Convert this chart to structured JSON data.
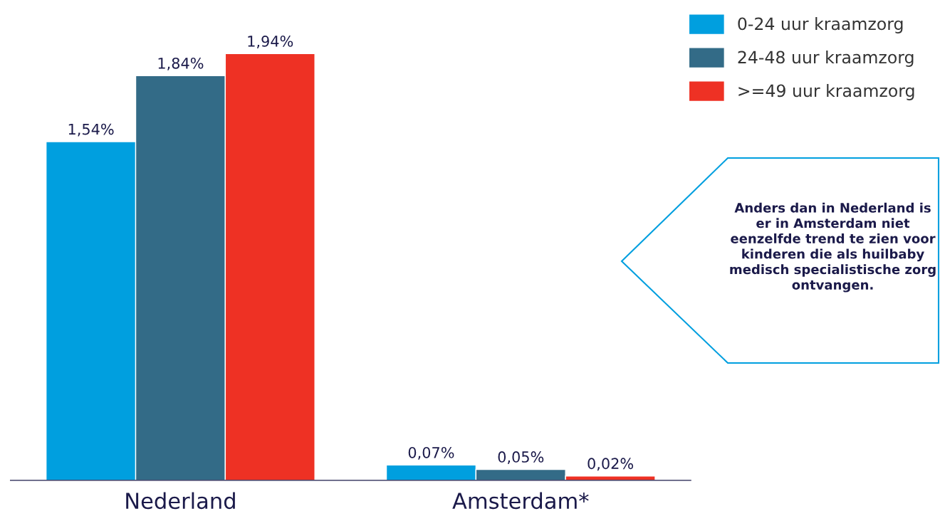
{
  "chart_data": {
    "type": "bar",
    "categories": [
      "Nederland",
      "Amsterdam*"
    ],
    "series": [
      {
        "name": "0-24 uur kraamzorg",
        "color": "#009fdf",
        "values": [
          1.54,
          0.07
        ],
        "value_labels": [
          "1,54%",
          "0,07%"
        ]
      },
      {
        "name": "24-48 uur kraamzorg",
        "color": "#336b87",
        "values": [
          1.84,
          0.05
        ],
        "value_labels": [
          "1,84%",
          "0,05%"
        ]
      },
      {
        "name": ">=49 uur kraamzorg",
        "color": "#ee3124",
        "values": [
          1.94,
          0.02
        ],
        "value_labels": [
          "1,94%",
          "0,02%"
        ]
      }
    ],
    "legend": "top right",
    "grid": false,
    "annotations": [
      "Anders dan in Nederland is er in Amsterdam niet eenzelfde trend te zien voor kinderen die als huilbaby medisch specialistische zorg ontvangen."
    ]
  }
}
